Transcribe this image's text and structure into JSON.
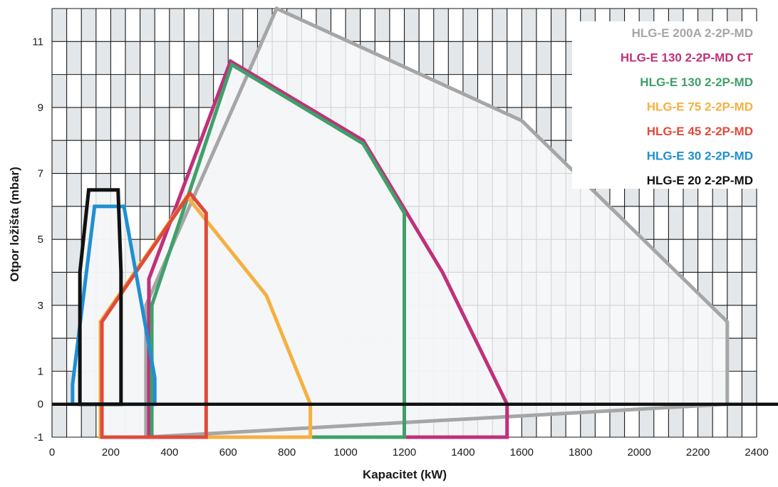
{
  "chart_data": {
    "type": "area",
    "title": "",
    "xlabel": "Kapacitet (kW)",
    "ylabel": "Otpor ložišta (mbar)",
    "xlim": [
      0,
      2400
    ],
    "ylim": [
      -1,
      12
    ],
    "x_ticks": [
      "0",
      "200",
      "400",
      "600",
      "800",
      "1000",
      "1200",
      "1400",
      "1600",
      "1800",
      "2000",
      "2200",
      "2400"
    ],
    "y_ticks": [
      "-1",
      "0",
      "1",
      "3",
      "5",
      "7",
      "9",
      "11"
    ],
    "grid": true,
    "legend_position": "top-right",
    "series": [
      {
        "name": "HLG-E 200A 2-2P-MD",
        "color": "#a6a6a6",
        "points": [
          [
            320,
            -1
          ],
          [
            320,
            3.0
          ],
          [
            765,
            12.0
          ],
          [
            1600,
            8.6
          ],
          [
            2300,
            2.5
          ],
          [
            2300,
            0
          ]
        ]
      },
      {
        "name": "HLG-E 130 2-2P-MD CT",
        "color": "#c0307a",
        "points": [
          [
            330,
            -1
          ],
          [
            330,
            3.8
          ],
          [
            608,
            10.4
          ],
          [
            1060,
            8.0
          ],
          [
            1330,
            4.0
          ],
          [
            1550,
            0
          ],
          [
            1550,
            -1
          ]
        ]
      },
      {
        "name": "HLG-E 130 2-2P-MD",
        "color": "#3fa06a",
        "points": [
          [
            340,
            -1
          ],
          [
            340,
            3.0
          ],
          [
            612,
            10.3
          ],
          [
            1060,
            7.9
          ],
          [
            1200,
            5.8
          ],
          [
            1200,
            -1
          ]
        ]
      },
      {
        "name": "HLG-E 75 2-2P-MD",
        "color": "#f5b041",
        "points": [
          [
            165,
            -1
          ],
          [
            165,
            2.5
          ],
          [
            460,
            6.3
          ],
          [
            730,
            3.3
          ],
          [
            880,
            0
          ],
          [
            880,
            -1
          ]
        ]
      },
      {
        "name": "HLG-E 45 2-2P-MD",
        "color": "#e04a3a",
        "points": [
          [
            170,
            -1
          ],
          [
            170,
            2.5
          ],
          [
            470,
            6.4
          ],
          [
            525,
            5.8
          ],
          [
            525,
            -1
          ]
        ]
      },
      {
        "name": "HLG-E 30 2-2P-MD",
        "color": "#1f8fd0",
        "points": [
          [
            70,
            0
          ],
          [
            70,
            0.6
          ],
          [
            145,
            6.0
          ],
          [
            245,
            6.0
          ],
          [
            350,
            0.8
          ],
          [
            350,
            0
          ]
        ]
      },
      {
        "name": "HLG-E 20 2-2P-MD",
        "color": "#111111",
        "points": [
          [
            95,
            0
          ],
          [
            95,
            4.0
          ],
          [
            125,
            6.5
          ],
          [
            225,
            6.5
          ],
          [
            235,
            4.0
          ],
          [
            235,
            0
          ]
        ]
      }
    ]
  }
}
